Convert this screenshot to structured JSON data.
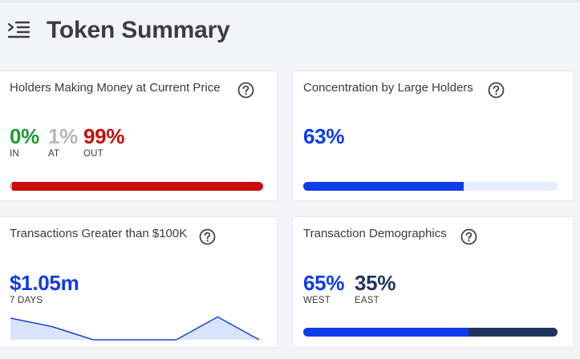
{
  "header": {
    "title": "Token Summary"
  },
  "colors": {
    "blue": "#0d3ce8",
    "navy": "#1f3560",
    "green": "#1f9a2e",
    "gray": "#b7b7b7",
    "red": "#c90d0d",
    "track": "#e6eefc"
  },
  "cards": {
    "holders": {
      "title": "Holders Making Money at Current Price",
      "in": {
        "value": "0%",
        "label": "IN",
        "percent": 0
      },
      "at": {
        "value": "1%",
        "label": "AT",
        "percent": 1
      },
      "out": {
        "value": "99%",
        "label": "OUT",
        "percent": 99
      }
    },
    "concentration": {
      "title": "Concentration by Large Holders",
      "value": "63%",
      "percent": 63
    },
    "transactions": {
      "title": "Transactions Greater than $100K",
      "value": "$1.05m",
      "period": "7 DAYS",
      "trend": [
        0.9,
        0.55,
        0.0,
        0.0,
        0.0,
        0.95,
        0.0
      ]
    },
    "demographics": {
      "title": "Transaction Demographics",
      "west": {
        "value": "65%",
        "label": "WEST",
        "percent": 65
      },
      "east": {
        "value": "35%",
        "label": "EAST",
        "percent": 35
      }
    }
  }
}
